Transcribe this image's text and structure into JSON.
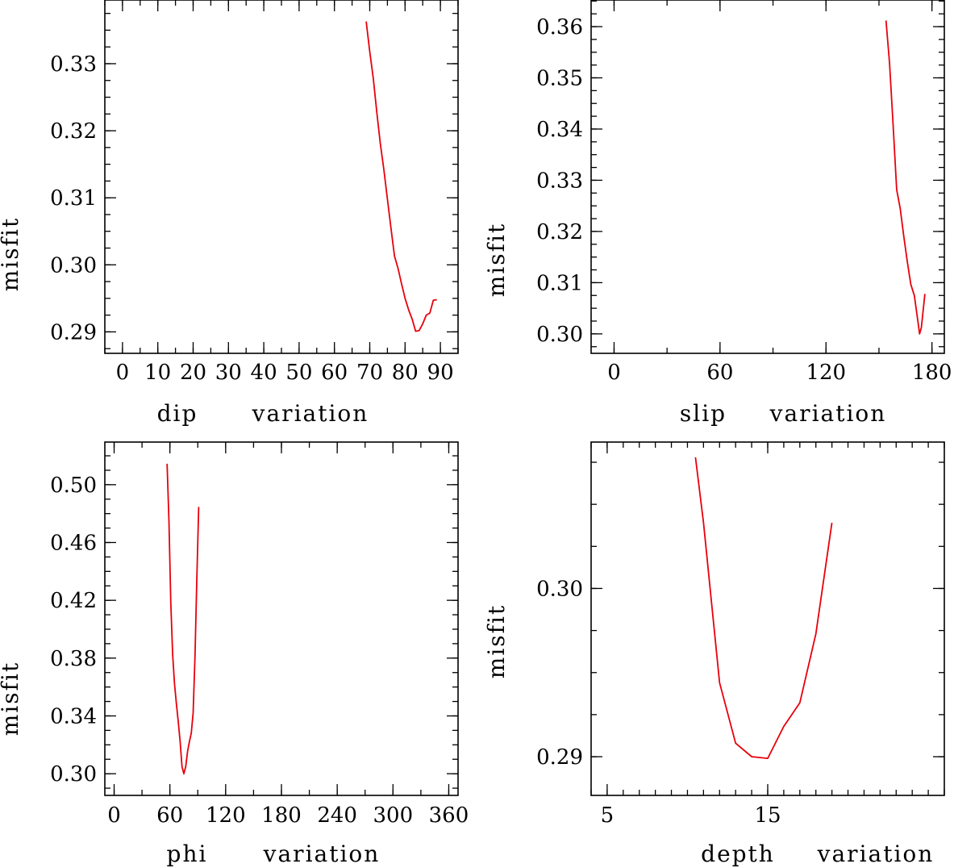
{
  "chart_data": [
    {
      "type": "line",
      "title": "",
      "xlabel_words": [
        "dip",
        "variation"
      ],
      "ylabel": "misfit",
      "xlim": [
        -5,
        95
      ],
      "ylim": [
        0.2868,
        0.3395
      ],
      "x_ticks": [
        0,
        10,
        20,
        30,
        40,
        50,
        60,
        70,
        80,
        90
      ],
      "x_tick_labels": [
        "0",
        "10",
        "20",
        "30",
        "40",
        "50",
        "60",
        "70",
        "80",
        "90"
      ],
      "x_minor_step": 5,
      "y_ticks": [
        0.29,
        0.3,
        0.31,
        0.32,
        0.33
      ],
      "y_tick_labels": [
        "0.29",
        "0.30",
        "0.31",
        "0.32",
        "0.33"
      ],
      "y_minor_step": 0.0025,
      "grid": false,
      "series": [
        {
          "name": "dip",
          "color": "#e8000b",
          "x": [
            69,
            70,
            71,
            72,
            73,
            74,
            75,
            76,
            77,
            78,
            79,
            80,
            81,
            82,
            83,
            84,
            85,
            86,
            87,
            88,
            89
          ],
          "y": [
            0.3363,
            0.3318,
            0.3278,
            0.3227,
            0.3181,
            0.3142,
            0.3098,
            0.3055,
            0.3013,
            0.2995,
            0.2972,
            0.295,
            0.2933,
            0.2919,
            0.2901,
            0.2902,
            0.2912,
            0.2925,
            0.2928,
            0.2947,
            0.2948
          ]
        }
      ]
    },
    {
      "type": "line",
      "title": "",
      "xlabel_words": [
        "slip",
        "variation"
      ],
      "ylabel": "misfit",
      "xlim": [
        -13,
        187
      ],
      "ylim": [
        0.2962,
        0.3652
      ],
      "x_ticks": [
        0,
        60,
        120,
        180
      ],
      "x_tick_labels": [
        "0",
        "60",
        "120",
        "180"
      ],
      "x_minor_step": 30,
      "y_ticks": [
        0.3,
        0.31,
        0.32,
        0.33,
        0.34,
        0.35,
        0.36
      ],
      "y_tick_labels": [
        "0.30",
        "0.31",
        "0.32",
        "0.33",
        "0.34",
        "0.35",
        "0.36"
      ],
      "y_minor_step": 0.0025,
      "grid": false,
      "series": [
        {
          "name": "slip",
          "color": "#e8000b",
          "x": [
            154,
            156,
            158,
            160,
            162,
            164,
            166,
            168,
            170,
            172,
            173,
            174,
            176
          ],
          "y": [
            0.3612,
            0.3528,
            0.3408,
            0.3282,
            0.3245,
            0.3192,
            0.3142,
            0.3097,
            0.3075,
            0.3025,
            0.3,
            0.3012,
            0.3078
          ]
        }
      ]
    },
    {
      "type": "line",
      "title": "",
      "xlabel_words": [
        "phi",
        "variation"
      ],
      "ylabel": "misfit",
      "xlim": [
        -10,
        370
      ],
      "ylim": [
        0.285,
        0.5295
      ],
      "x_ticks": [
        0,
        60,
        120,
        180,
        240,
        300,
        360
      ],
      "x_tick_labels": [
        "0",
        "60",
        "120",
        "180",
        "240",
        "300",
        "360"
      ],
      "x_minor_step": 30,
      "y_ticks": [
        0.3,
        0.34,
        0.38,
        0.42,
        0.46,
        0.5
      ],
      "y_tick_labels": [
        "0.30",
        "0.34",
        "0.38",
        "0.42",
        "0.46",
        "0.50"
      ],
      "y_minor_step": 0.01,
      "grid": false,
      "series": [
        {
          "name": "phi",
          "color": "#e8000b",
          "x": [
            57,
            59,
            61,
            63,
            65,
            67,
            69,
            71,
            73,
            75,
            77,
            79,
            81,
            83,
            85,
            87,
            89,
            91
          ],
          "y": [
            0.5145,
            0.475,
            0.4182,
            0.3824,
            0.3622,
            0.348,
            0.3357,
            0.3221,
            0.3049,
            0.3,
            0.3049,
            0.3154,
            0.3223,
            0.3281,
            0.3421,
            0.3812,
            0.4353,
            0.4846
          ]
        }
      ]
    },
    {
      "type": "line",
      "title": "",
      "xlabel_words": [
        "depth",
        "variation"
      ],
      "ylabel": "misfit",
      "xlim": [
        4,
        26
      ],
      "ylim": [
        0.2877,
        0.3087
      ],
      "x_ticks": [
        5,
        15
      ],
      "x_tick_labels": [
        "5",
        "15"
      ],
      "x_minor_step": 1,
      "y_ticks": [
        0.29,
        0.3
      ],
      "y_tick_labels": [
        "0.29",
        "0.30"
      ],
      "y_minor_step": 0.0025,
      "grid": false,
      "series": [
        {
          "name": "depth",
          "color": "#e8000b",
          "x": [
            10.5,
            11,
            12,
            13,
            14,
            15,
            16,
            17,
            18,
            19
          ],
          "y": [
            0.3078,
            0.3039,
            0.2944,
            0.2908,
            0.29,
            0.2899,
            0.2918,
            0.2932,
            0.2973,
            0.3039
          ]
        }
      ]
    }
  ]
}
